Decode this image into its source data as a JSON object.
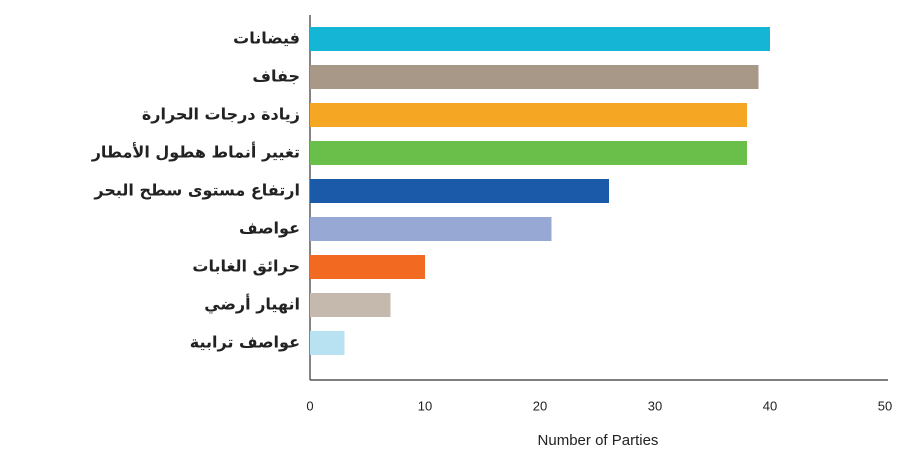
{
  "chart_data": {
    "type": "bar",
    "orientation": "horizontal",
    "categories": [
      "فيضانات",
      "جفاف",
      "زيادة درجات الحرارة",
      "تغيير أنماط هطول الأمطار",
      "ارتفاع مستوى سطح البحر",
      "عواصف",
      "حرائق الغابات",
      "انهيار أرضي",
      "عواصف ترابية"
    ],
    "values": [
      40,
      39,
      38,
      38,
      26,
      21,
      10,
      7,
      3
    ],
    "colors": [
      "#15b5d6",
      "#a89888",
      "#f5a623",
      "#6abf4b",
      "#1b5aa8",
      "#98a8d4",
      "#f26a22",
      "#c5b9ae",
      "#b8e2f2"
    ],
    "xlabel": "Number of Parties",
    "xlim": [
      0,
      50
    ],
    "xticks": [
      0,
      10,
      20,
      30,
      40,
      50
    ],
    "grid": false
  }
}
